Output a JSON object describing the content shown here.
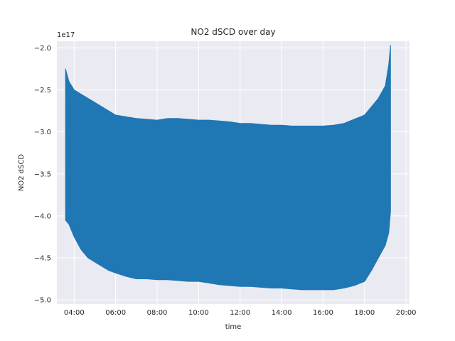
{
  "chart_data": {
    "type": "line",
    "title": "NO2 dSCD over day",
    "xlabel": "time",
    "ylabel": "NO2 dSCD",
    "y_offset_text": "1e17",
    "y_multiplier": 1e+17,
    "xlim": [
      "03:10",
      "20:10"
    ],
    "ylim": [
      -5.05,
      -1.92
    ],
    "x_ticks": [
      "04:00",
      "06:00",
      "08:00",
      "10:00",
      "12:00",
      "14:00",
      "16:00",
      "18:00",
      "20:00"
    ],
    "y_ticks": [
      -2.0,
      -2.5,
      -3.0,
      -3.5,
      -4.0,
      -4.5,
      -5.0
    ],
    "y_tick_labels": [
      "−2.0",
      "−2.5",
      "−3.0",
      "−3.5",
      "−4.0",
      "−4.5",
      "−5.0"
    ],
    "grid": true,
    "legend": "none",
    "series": [
      {
        "color": "#1f77b4",
        "x": [
          "03:35",
          "03:45",
          "04:00",
          "04:20",
          "04:40",
          "05:00",
          "05:20",
          "05:40",
          "06:00",
          "06:30",
          "07:00",
          "07:30",
          "08:00",
          "08:30",
          "09:00",
          "09:30",
          "10:00",
          "10:30",
          "11:00",
          "11:30",
          "12:00",
          "12:30",
          "13:00",
          "13:30",
          "14:00",
          "14:30",
          "15:00",
          "15:30",
          "16:00",
          "16:30",
          "17:00",
          "17:30",
          "18:00",
          "18:20",
          "18:40",
          "19:00",
          "19:10",
          "19:15"
        ],
        "upper": [
          -2.25,
          -2.4,
          -2.5,
          -2.55,
          -2.6,
          -2.65,
          -2.7,
          -2.75,
          -2.8,
          -2.82,
          -2.84,
          -2.85,
          -2.86,
          -2.84,
          -2.84,
          -2.85,
          -2.86,
          -2.86,
          -2.87,
          -2.88,
          -2.9,
          -2.9,
          -2.91,
          -2.92,
          -2.92,
          -2.93,
          -2.93,
          -2.93,
          -2.93,
          -2.92,
          -2.9,
          -2.85,
          -2.8,
          -2.7,
          -2.6,
          -2.45,
          -2.2,
          -1.97
        ],
        "lower": [
          -4.05,
          -4.1,
          -4.25,
          -4.4,
          -4.5,
          -4.55,
          -4.6,
          -4.65,
          -4.68,
          -4.72,
          -4.75,
          -4.75,
          -4.76,
          -4.76,
          -4.77,
          -4.78,
          -4.78,
          -4.8,
          -4.82,
          -4.83,
          -4.84,
          -4.84,
          -4.85,
          -4.86,
          -4.86,
          -4.87,
          -4.88,
          -4.88,
          -4.88,
          -4.88,
          -4.86,
          -4.83,
          -4.78,
          -4.65,
          -4.5,
          -4.35,
          -4.2,
          -3.95
        ]
      }
    ]
  }
}
